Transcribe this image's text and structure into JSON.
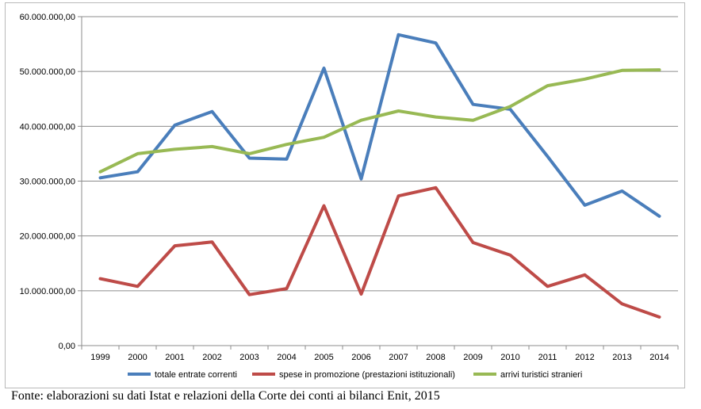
{
  "chart_data": {
    "type": "line",
    "x": [
      "1999",
      "2000",
      "2001",
      "2002",
      "2003",
      "2004",
      "2005",
      "2006",
      "2007",
      "2008",
      "2009",
      "2010",
      "2011",
      "2012",
      "2013",
      "2014"
    ],
    "yticks": [
      "0,00",
      "10.000.000,00",
      "20.000.000,00",
      "30.000.000,00",
      "40.000.000,00",
      "50.000.000,00",
      "60.000.000,00"
    ],
    "ylim": [
      0,
      60000000
    ],
    "grid": true,
    "legend_position": "bottom",
    "series": [
      {
        "name": "totale entrate correnti",
        "color": "#4a7ebb",
        "values": [
          30600000,
          31700000,
          40200000,
          42700000,
          34200000,
          34000000,
          50600000,
          30400000,
          56700000,
          55200000,
          44000000,
          43100000,
          34500000,
          25600000,
          28200000,
          23600000
        ]
      },
      {
        "name": "spese in promozione (prestazioni istituzionali)",
        "color": "#be4b48",
        "values": [
          12200000,
          10800000,
          18200000,
          18900000,
          9300000,
          10400000,
          25500000,
          9400000,
          27300000,
          28800000,
          18800000,
          16500000,
          10800000,
          12900000,
          7600000,
          5200000
        ]
      },
      {
        "name": "arrivi turistici stranieri",
        "color": "#98b954",
        "values": [
          31700000,
          35000000,
          35800000,
          36300000,
          35000000,
          36700000,
          38000000,
          41100000,
          42800000,
          41700000,
          41100000,
          43600000,
          47400000,
          48600000,
          50200000,
          50300000
        ]
      }
    ]
  },
  "source_note": "Fonte: elaborazioni su dati Istat e relazioni della Corte dei conti ai bilanci Enit, 2015"
}
